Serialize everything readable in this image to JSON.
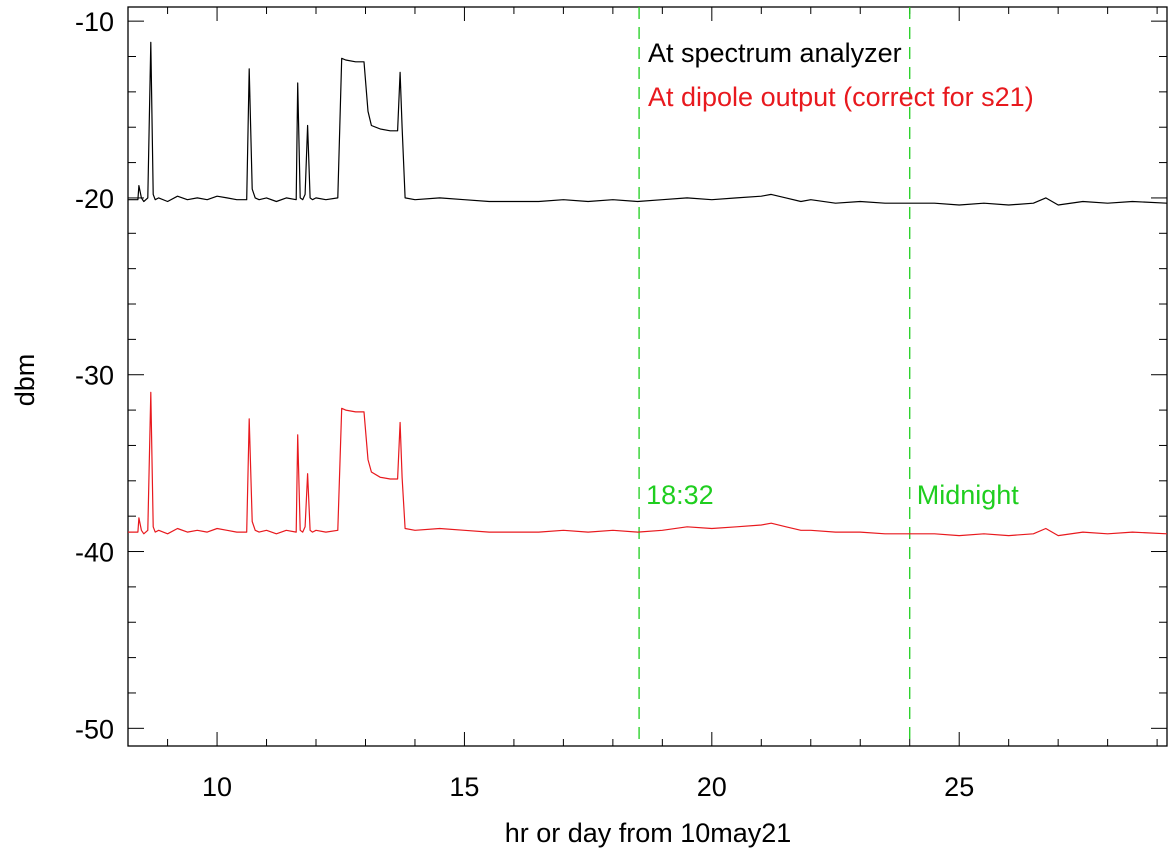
{
  "chart_data": {
    "type": "line",
    "xlabel": "hr or day from 10may21",
    "ylabel": "dbm",
    "xlim": [
      8.2,
      29.2
    ],
    "ylim": [
      -51,
      -9.2
    ],
    "xticks": [
      10,
      15,
      20,
      25
    ],
    "xtick_labels": [
      "10",
      "15",
      "20",
      "25"
    ],
    "yticks": [
      -10,
      -20,
      -30,
      -40,
      -50
    ],
    "ytick_labels": [
      "-10",
      "-20",
      "-30",
      "-40",
      "-50"
    ],
    "grid": false,
    "legend_position": "top-right",
    "series": [
      {
        "name": "At spectrum analyzer",
        "color": "#000000",
        "x": [
          8.2,
          8.4,
          8.42,
          8.47,
          8.52,
          8.6,
          8.66,
          8.71,
          8.75,
          8.82,
          9.0,
          9.2,
          9.4,
          9.6,
          9.8,
          10.0,
          10.2,
          10.4,
          10.6,
          10.65,
          10.71,
          10.77,
          10.85,
          11.0,
          11.2,
          11.4,
          11.6,
          11.63,
          11.68,
          11.73,
          11.78,
          11.83,
          11.88,
          11.93,
          12.0,
          12.2,
          12.44,
          12.52,
          12.6,
          12.8,
          12.97,
          13.05,
          13.12,
          13.3,
          13.5,
          13.65,
          13.7,
          13.74,
          13.8,
          14.0,
          14.5,
          15.0,
          15.5,
          16.0,
          16.5,
          17.0,
          17.5,
          18.0,
          18.5,
          19.0,
          19.5,
          20.0,
          20.5,
          21.0,
          21.2,
          21.5,
          21.8,
          22.0,
          22.5,
          23.0,
          23.5,
          24.0,
          24.5,
          25.0,
          25.5,
          26.0,
          26.5,
          26.75,
          27.0,
          27.5,
          28.0,
          28.5,
          29.2
        ],
        "y": [
          -20.1,
          -20.1,
          -19.3,
          -20.0,
          -20.2,
          -20.0,
          -11.2,
          -19.8,
          -20.1,
          -20.0,
          -20.2,
          -19.9,
          -20.1,
          -20.0,
          -20.1,
          -19.9,
          -20.0,
          -20.1,
          -20.1,
          -12.7,
          -19.5,
          -20.0,
          -20.1,
          -20.0,
          -20.2,
          -20.0,
          -20.1,
          -13.5,
          -20.0,
          -20.1,
          -19.8,
          -15.9,
          -20.0,
          -20.1,
          -20.0,
          -20.1,
          -20.0,
          -12.1,
          -12.2,
          -12.3,
          -12.3,
          -15.1,
          -15.9,
          -16.1,
          -16.2,
          -16.2,
          -12.9,
          -16.0,
          -20.0,
          -20.1,
          -20.0,
          -20.1,
          -20.2,
          -20.2,
          -20.2,
          -20.1,
          -20.2,
          -20.1,
          -20.2,
          -20.1,
          -20.0,
          -20.1,
          -20.0,
          -19.9,
          -19.8,
          -20.0,
          -20.2,
          -20.1,
          -20.3,
          -20.2,
          -20.3,
          -20.3,
          -20.3,
          -20.4,
          -20.3,
          -20.4,
          -20.3,
          -20.0,
          -20.4,
          -20.2,
          -20.3,
          -20.2,
          -20.3
        ]
      },
      {
        "name": "At dipole output (correct for s21)",
        "color": "#e8191e",
        "x": [
          8.2,
          8.4,
          8.42,
          8.47,
          8.52,
          8.6,
          8.66,
          8.71,
          8.75,
          8.82,
          9.0,
          9.2,
          9.4,
          9.6,
          9.8,
          10.0,
          10.2,
          10.4,
          10.6,
          10.65,
          10.71,
          10.77,
          10.85,
          11.0,
          11.2,
          11.4,
          11.6,
          11.63,
          11.68,
          11.73,
          11.78,
          11.83,
          11.88,
          11.93,
          12.0,
          12.2,
          12.44,
          12.52,
          12.6,
          12.8,
          12.97,
          13.05,
          13.12,
          13.3,
          13.5,
          13.65,
          13.7,
          13.74,
          13.8,
          14.0,
          14.5,
          15.0,
          15.5,
          16.0,
          16.5,
          17.0,
          17.5,
          18.0,
          18.5,
          19.0,
          19.5,
          20.0,
          20.5,
          21.0,
          21.2,
          21.5,
          21.8,
          22.0,
          22.5,
          23.0,
          23.5,
          24.0,
          24.5,
          25.0,
          25.5,
          26.0,
          26.5,
          26.75,
          27.0,
          27.5,
          28.0,
          28.5,
          29.2
        ],
        "y": [
          -38.9,
          -38.9,
          -38.1,
          -38.8,
          -39.0,
          -38.8,
          -31.0,
          -38.6,
          -38.9,
          -38.8,
          -39.0,
          -38.7,
          -38.9,
          -38.8,
          -38.9,
          -38.7,
          -38.8,
          -38.9,
          -38.9,
          -32.5,
          -38.3,
          -38.8,
          -38.9,
          -38.8,
          -39.0,
          -38.8,
          -38.9,
          -33.4,
          -38.8,
          -38.9,
          -38.6,
          -35.6,
          -38.8,
          -38.9,
          -38.8,
          -38.9,
          -38.8,
          -31.9,
          -32.0,
          -32.1,
          -32.1,
          -34.8,
          -35.5,
          -35.8,
          -35.9,
          -35.9,
          -32.7,
          -35.8,
          -38.7,
          -38.8,
          -38.7,
          -38.8,
          -38.9,
          -38.9,
          -38.9,
          -38.8,
          -38.9,
          -38.8,
          -38.9,
          -38.8,
          -38.6,
          -38.7,
          -38.6,
          -38.5,
          -38.4,
          -38.6,
          -38.8,
          -38.8,
          -38.9,
          -38.9,
          -39.0,
          -39.0,
          -39.0,
          -39.1,
          -39.0,
          -39.1,
          -39.0,
          -38.7,
          -39.1,
          -38.9,
          -39.0,
          -38.9,
          -39.0
        ]
      }
    ],
    "vlines": [
      {
        "x": 18.53,
        "label": "18:32",
        "color": "#1fce1f",
        "label_y": -37.3
      },
      {
        "x": 24.0,
        "label": "Midnight",
        "color": "#1fce1f",
        "label_y": -37.3
      }
    ]
  }
}
